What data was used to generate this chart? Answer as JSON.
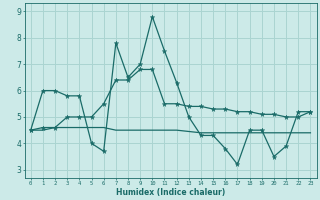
{
  "xlabel": "Humidex (Indice chaleur)",
  "bg_color": "#cceae8",
  "grid_color": "#aad4d1",
  "line_color": "#1a6b68",
  "xlim": [
    -0.5,
    23.5
  ],
  "ylim": [
    2.7,
    9.3
  ],
  "xticks": [
    0,
    1,
    2,
    3,
    4,
    5,
    6,
    7,
    8,
    9,
    10,
    11,
    12,
    13,
    14,
    15,
    16,
    17,
    18,
    19,
    20,
    21,
    22,
    23
  ],
  "yticks": [
    3,
    4,
    5,
    6,
    7,
    8,
    9
  ],
  "line1_x": [
    0,
    1,
    2,
    3,
    4,
    5,
    6,
    7,
    8,
    9,
    10,
    11,
    12,
    13,
    14,
    15,
    16,
    17,
    18,
    19,
    20,
    21,
    22,
    23
  ],
  "line1_y": [
    4.5,
    6.0,
    6.0,
    5.8,
    5.8,
    4.0,
    3.7,
    7.8,
    6.5,
    7.0,
    8.8,
    7.5,
    6.3,
    5.0,
    4.3,
    4.3,
    3.8,
    3.2,
    4.5,
    4.5,
    3.5,
    3.9,
    5.2,
    5.2
  ],
  "line2_x": [
    0,
    1,
    2,
    3,
    4,
    5,
    6,
    7,
    8,
    9,
    10,
    11,
    12,
    13,
    14,
    15,
    16,
    17,
    18,
    19,
    20,
    21,
    22,
    23
  ],
  "line2_y": [
    4.5,
    4.6,
    4.6,
    5.0,
    5.0,
    5.0,
    5.5,
    6.4,
    6.4,
    6.8,
    6.8,
    5.5,
    5.5,
    5.4,
    5.4,
    5.3,
    5.3,
    5.2,
    5.2,
    5.1,
    5.1,
    5.0,
    5.0,
    5.2
  ],
  "line3_x": [
    0,
    1,
    2,
    3,
    4,
    5,
    6,
    7,
    8,
    9,
    10,
    11,
    12,
    13,
    14,
    15,
    16,
    17,
    18,
    19,
    20,
    21,
    22,
    23
  ],
  "line3_y": [
    4.5,
    4.5,
    4.6,
    4.6,
    4.6,
    4.6,
    4.6,
    4.5,
    4.5,
    4.5,
    4.5,
    4.5,
    4.5,
    4.45,
    4.4,
    4.4,
    4.4,
    4.4,
    4.4,
    4.4,
    4.4,
    4.4,
    4.4,
    4.4
  ]
}
